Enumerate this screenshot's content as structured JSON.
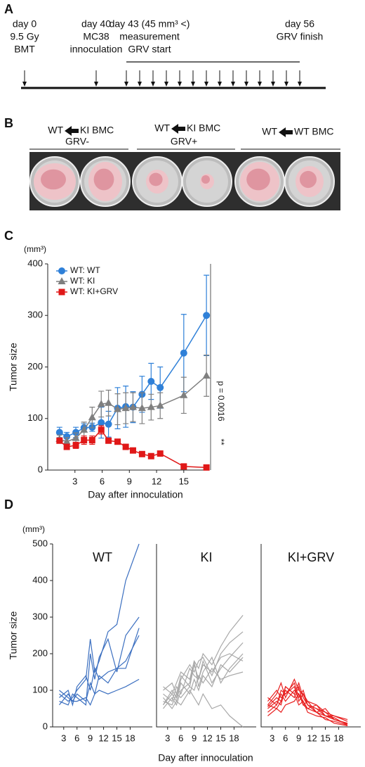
{
  "panel_a": {
    "label": "A",
    "events": [
      {
        "lines": [
          "day 0",
          "9.5 Gy",
          "BMT"
        ]
      },
      {
        "lines": [
          "day 40",
          "MC38",
          "innoculation"
        ]
      },
      {
        "lines": [
          "day 43 (45 mm³ <)",
          "measurement",
          "GRV start"
        ]
      },
      {
        "lines": [
          "day 56",
          "GRV finish"
        ]
      }
    ]
  },
  "panel_b": {
    "label": "B",
    "groups": [
      {
        "left": "WT",
        "right": "KI BMC",
        "condition": "GRV-"
      },
      {
        "left": "WT",
        "right": "KI BMC",
        "condition": "GRV+"
      },
      {
        "left": "WT",
        "right": "WT BMC"
      }
    ]
  },
  "panel_c": {
    "label": "C"
  },
  "panel_d": {
    "label": "D",
    "xlabel": "Day after innoculation"
  },
  "chart_data": [
    {
      "type": "line",
      "unit": "(mm³)",
      "ylabel": "Tumor size",
      "xlabel": "Day after innoculation",
      "xlim": [
        0,
        17.8
      ],
      "xticks": [
        3,
        6,
        9,
        12,
        15
      ],
      "ylim": [
        0,
        400
      ],
      "yticks": [
        0,
        100,
        200,
        300,
        400
      ],
      "legend": "upper-left",
      "significance": "**",
      "annotation": "p = 0.0016",
      "x": [
        1.3,
        2.1,
        3.1,
        4.0,
        4.9,
        5.9,
        6.7,
        7.7,
        8.6,
        9.4,
        10.4,
        11.4,
        12.4,
        15,
        17.5
      ],
      "series": [
        {
          "name": "WT: WT",
          "color": "#2f80d8",
          "marker": "circle",
          "values": [
            73,
            65,
            73,
            82,
            83,
            92,
            89,
            120,
            123,
            122,
            147,
            172,
            160,
            227,
            300
          ],
          "errors": [
            10,
            8,
            10,
            8,
            8,
            30,
            25,
            40,
            40,
            30,
            35,
            35,
            40,
            75,
            78
          ]
        },
        {
          "name": "WT: KI",
          "color": "#7f7f7f",
          "marker": "triangle",
          "values": [
            60,
            55,
            62,
            78,
            102,
            128,
            130,
            118,
            120,
            122,
            120,
            122,
            125,
            145,
            183
          ],
          "errors": [
            8,
            8,
            10,
            15,
            20,
            25,
            25,
            30,
            30,
            28,
            30,
            25,
            25,
            35,
            40
          ]
        },
        {
          "name": "WT: KI+GRV",
          "color": "#e01818",
          "marker": "square",
          "values": [
            57,
            45,
            48,
            58,
            58,
            78,
            57,
            55,
            45,
            38,
            31,
            27,
            32,
            7,
            5
          ],
          "errors": [
            5,
            5,
            6,
            8,
            8,
            8,
            5,
            5,
            4,
            4,
            3,
            3,
            3,
            3,
            2
          ]
        }
      ]
    },
    {
      "type": "line",
      "title": "WT",
      "unit": "(mm³)",
      "ylabel": "Tumor size",
      "xlim": [
        0.5,
        23
      ],
      "xticks": [
        3,
        6,
        9,
        12,
        15,
        18
      ],
      "ylim": [
        0,
        500
      ],
      "yticks": [
        0,
        100,
        200,
        300,
        400,
        500
      ],
      "x": [
        2,
        4,
        5,
        6,
        8,
        9,
        10,
        11,
        13,
        15,
        17,
        20
      ],
      "series": [
        {
          "color": "#3b6fc0",
          "values": [
            90,
            70,
            80,
            100,
            130,
            240,
            150,
            180,
            260,
            280,
            400,
            500
          ]
        },
        {
          "color": "#3b6fc0",
          "values": [
            70,
            60,
            90,
            80,
            60,
            200,
            130,
            190,
            240,
            150,
            250,
            300
          ]
        },
        {
          "color": "#3b6fc0",
          "values": [
            80,
            100,
            60,
            110,
            140,
            100,
            160,
            130,
            150,
            160,
            160,
            270
          ]
        },
        {
          "color": "#3b6fc0",
          "values": [
            100,
            80,
            70,
            90,
            70,
            120,
            90,
            140,
            120,
            160,
            180,
            250
          ]
        },
        {
          "color": "#3b6fc0",
          "values": [
            60,
            90,
            70,
            70,
            80,
            60,
            90,
            100,
            90,
            100,
            110,
            130
          ]
        }
      ]
    },
    {
      "type": "line",
      "title": "KI",
      "xlim": [
        0.5,
        23
      ],
      "xticks": [
        3,
        6,
        9,
        12,
        15,
        18
      ],
      "ylim": [
        0,
        500
      ],
      "x": [
        2,
        4,
        5,
        6,
        8,
        9,
        10,
        11,
        13,
        15,
        17,
        20
      ],
      "series": [
        {
          "color": "#a8a8a8",
          "values": [
            110,
            90,
            120,
            150,
            130,
            180,
            160,
            200,
            170,
            220,
            260,
            305
          ]
        },
        {
          "color": "#a8a8a8",
          "values": [
            60,
            100,
            80,
            130,
            170,
            150,
            180,
            190,
            140,
            200,
            230,
            260
          ]
        },
        {
          "color": "#a8a8a8",
          "values": [
            90,
            70,
            110,
            90,
            160,
            140,
            130,
            170,
            150,
            190,
            200,
            180
          ]
        },
        {
          "color": "#a8a8a8",
          "values": [
            50,
            80,
            60,
            100,
            120,
            180,
            110,
            150,
            190,
            120,
            160,
            200
          ]
        },
        {
          "color": "#a8a8a8",
          "values": [
            70,
            60,
            90,
            80,
            110,
            100,
            140,
            120,
            160,
            130,
            140,
            150
          ]
        },
        {
          "color": "#a8a8a8",
          "values": [
            60,
            90,
            70,
            120,
            90,
            130,
            100,
            140,
            110,
            170,
            150,
            190
          ]
        },
        {
          "color": "#a8a8a8",
          "values": [
            80,
            50,
            70,
            60,
            100,
            80,
            60,
            90,
            50,
            60,
            30,
            0
          ]
        },
        {
          "color": "#a8a8a8",
          "values": [
            100,
            120,
            90,
            140,
            110,
            170,
            130,
            180,
            120,
            160,
            190,
            230
          ]
        }
      ]
    },
    {
      "type": "line",
      "title": "KI+GRV",
      "xlim": [
        0.5,
        23
      ],
      "xticks": [
        3,
        6,
        9,
        12,
        15,
        18
      ],
      "ylim": [
        0,
        500
      ],
      "x": [
        2,
        4,
        5,
        6,
        8,
        9,
        10,
        11,
        13,
        15,
        17,
        20
      ],
      "series": [
        {
          "color": "#e82020",
          "values": [
            60,
            90,
            120,
            80,
            130,
            100,
            90,
            70,
            60,
            40,
            30,
            15
          ]
        },
        {
          "color": "#e82020",
          "values": [
            50,
            70,
            60,
            110,
            90,
            120,
            80,
            60,
            50,
            40,
            20,
            10
          ]
        },
        {
          "color": "#e82020",
          "values": [
            70,
            100,
            80,
            90,
            110,
            70,
            90,
            60,
            40,
            30,
            25,
            5
          ]
        },
        {
          "color": "#e82020",
          "values": [
            40,
            60,
            90,
            70,
            100,
            90,
            70,
            50,
            60,
            30,
            20,
            10
          ]
        },
        {
          "color": "#e82020",
          "values": [
            60,
            50,
            70,
            100,
            80,
            110,
            60,
            70,
            40,
            50,
            20,
            8
          ]
        },
        {
          "color": "#e82020",
          "values": [
            80,
            60,
            100,
            90,
            120,
            80,
            100,
            60,
            50,
            30,
            30,
            20
          ]
        },
        {
          "color": "#e82020",
          "values": [
            30,
            50,
            40,
            60,
            70,
            90,
            60,
            50,
            40,
            20,
            15,
            5
          ]
        },
        {
          "color": "#e82020",
          "values": [
            55,
            80,
            70,
            110,
            90,
            60,
            70,
            40,
            30,
            25,
            10,
            3
          ]
        }
      ]
    }
  ]
}
